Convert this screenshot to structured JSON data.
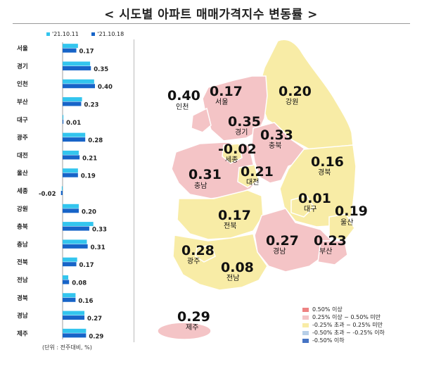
{
  "title": "< 시도별 아파트 매매가격지수 변동률 >",
  "unit_note": "(단위 : 전주대비, %)",
  "colors": {
    "series_prev": "#33c5ee",
    "series_curr": "#1764c8",
    "map_high": "#ee8282",
    "map_mid": "#f4c4c6",
    "map_flat": "#f8eca6",
    "map_low": "#b7cfe8",
    "map_vlow": "#4674c4"
  },
  "map_legend": [
    {
      "label": "0.50% 이상",
      "color": "#ee8282"
    },
    {
      "label": "0.25% 이상 ~ 0.50% 미만",
      "color": "#f4c4c6"
    },
    {
      "label": "-0.25% 초과 ~ 0.25% 미만",
      "color": "#f8eca6"
    },
    {
      "label": "-0.50% 초과 ~ -0.25% 이하",
      "color": "#b7cfe8"
    },
    {
      "label": "-0.50% 이하",
      "color": "#4674c4"
    }
  ],
  "map_regions": [
    {
      "name": "인천",
      "value": "0.40"
    },
    {
      "name": "서울",
      "value": "0.17"
    },
    {
      "name": "강원",
      "value": "0.20"
    },
    {
      "name": "경기",
      "value": "0.35"
    },
    {
      "name": "충북",
      "value": "0.33"
    },
    {
      "name": "세종",
      "value": "-0.02"
    },
    {
      "name": "경북",
      "value": "0.16"
    },
    {
      "name": "충남",
      "value": "0.31"
    },
    {
      "name": "대전",
      "value": "0.21"
    },
    {
      "name": "대구",
      "value": "0.01"
    },
    {
      "name": "울산",
      "value": "0.19"
    },
    {
      "name": "전북",
      "value": "0.17"
    },
    {
      "name": "경남",
      "value": "0.27"
    },
    {
      "name": "부산",
      "value": "0.23"
    },
    {
      "name": "광주",
      "value": "0.28"
    },
    {
      "name": "전남",
      "value": "0.08"
    },
    {
      "name": "제주",
      "value": "0.29"
    }
  ],
  "chart_data": {
    "type": "bar",
    "orientation": "horizontal",
    "categories": [
      "서울",
      "경기",
      "인천",
      "부산",
      "대구",
      "광주",
      "대전",
      "울산",
      "세종",
      "강원",
      "충북",
      "충남",
      "전북",
      "전남",
      "경북",
      "경남",
      "제주"
    ],
    "series": [
      {
        "name": "'21.10.11",
        "values": [
          0.19,
          0.34,
          0.39,
          0.24,
          0.01,
          0.28,
          0.2,
          0.19,
          -0.01,
          0.2,
          0.38,
          0.3,
          0.18,
          0.07,
          0.16,
          0.27,
          0.29
        ]
      },
      {
        "name": "'21.10.18",
        "values": [
          0.17,
          0.35,
          0.4,
          0.23,
          0.01,
          0.28,
          0.21,
          0.19,
          -0.02,
          0.2,
          0.33,
          0.31,
          0.17,
          0.08,
          0.16,
          0.27,
          0.29
        ]
      }
    ],
    "data_labels": [
      "0.17",
      "0.35",
      "0.40",
      "0.23",
      "0.01",
      "0.28",
      "0.21",
      "0.19",
      "-0.02",
      "0.20",
      "0.33",
      "0.31",
      "0.17",
      "0.08",
      "0.16",
      "0.27",
      "0.29"
    ],
    "xlim": [
      -0.05,
      0.45
    ],
    "legend_position": "top",
    "grid": false
  }
}
